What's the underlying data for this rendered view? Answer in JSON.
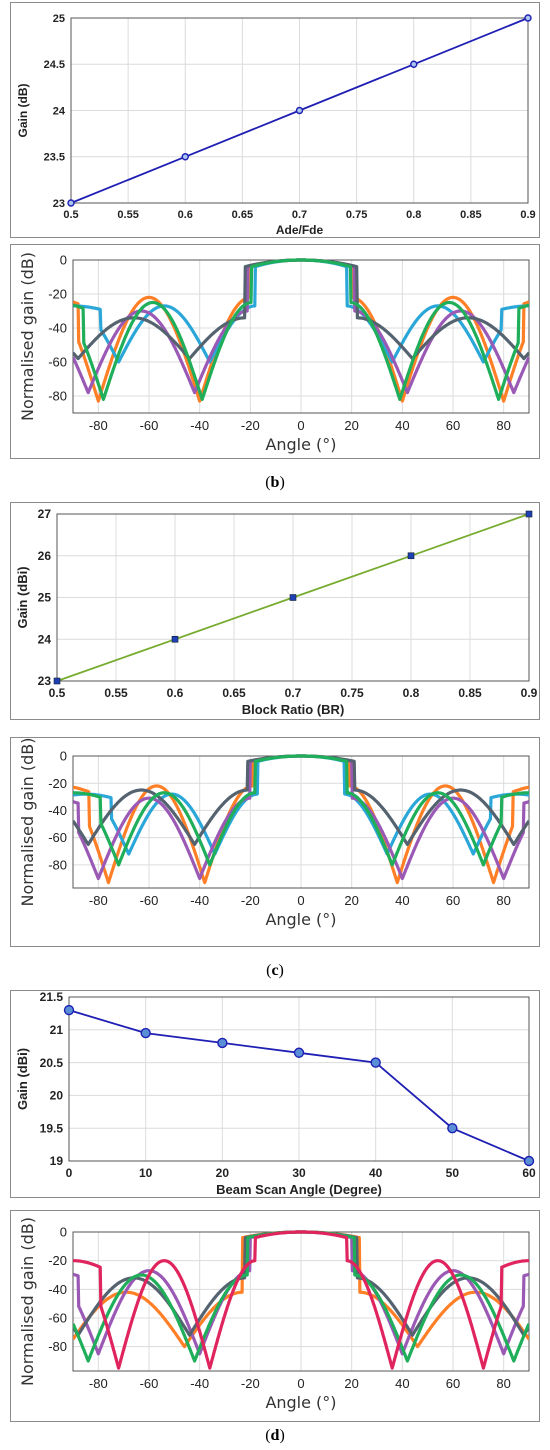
{
  "captions": {
    "b": {
      "open": "(",
      "letter": "b",
      "close": ")"
    },
    "c": {
      "open": "(",
      "letter": "c",
      "close": ")"
    },
    "d": {
      "open": "(",
      "letter": "d",
      "close": ")"
    }
  },
  "chart_data": [
    {
      "id": "gain_ade_fde",
      "type": "line",
      "xlabel": "Ade/Fde",
      "ylabel": "Gain (dB)",
      "xlim": [
        0.5,
        0.9
      ],
      "ylim": [
        23,
        25
      ],
      "xticks": [
        "0.5",
        "0.55",
        "0.6",
        "0.65",
        "0.7",
        "0.75",
        "0.8",
        "0.85",
        "0.9"
      ],
      "yticks": [
        "23",
        "23.5",
        "24",
        "24.5",
        "25"
      ],
      "grid": true,
      "series": [
        {
          "x": [
            0.5,
            0.6,
            0.7,
            0.8,
            0.9
          ],
          "y": [
            23,
            23.5,
            24,
            24.5,
            25
          ],
          "color": "#1f1fb4",
          "marker": "circle"
        }
      ]
    },
    {
      "id": "pattern_b",
      "type": "line",
      "xlabel": "Angle (°)",
      "ylabel": "Normalised gain (dB)",
      "xlim": [
        -90,
        90
      ],
      "ylim": [
        -90,
        0
      ],
      "xticks": [
        "-80",
        "-60",
        "-40",
        "-20",
        "0",
        "20",
        "40",
        "60",
        "80"
      ],
      "yticks": [
        "0",
        "-20",
        "-40",
        "-60",
        "-80"
      ],
      "grid": true,
      "series": [
        {
          "beamwidth": 40,
          "floor": -22,
          "depth": -83,
          "color": "#ff7f27"
        },
        {
          "beamwidth": 36,
          "floor": -27,
          "depth": -60,
          "color": "#2aa7d8"
        },
        {
          "beamwidth": 42,
          "floor": -30,
          "depth": -78,
          "color": "#9b59b6"
        },
        {
          "beamwidth": 44,
          "floor": -34,
          "depth": -58,
          "color": "#54636f"
        },
        {
          "beamwidth": 39,
          "floor": -25,
          "depth": -82,
          "color": "#1fae5a"
        }
      ]
    },
    {
      "id": "gain_block_ratio",
      "type": "line",
      "xlabel": "Block Ratio (BR)",
      "ylabel": "Gain (dBi)",
      "xlim": [
        0.5,
        0.9
      ],
      "ylim": [
        23,
        27
      ],
      "xticks": [
        "0.5",
        "0.55",
        "0.6",
        "0.65",
        "0.7",
        "0.75",
        "0.8",
        "0.85",
        "0.9"
      ],
      "yticks": [
        "23",
        "24",
        "25",
        "26",
        "27"
      ],
      "grid": true,
      "series": [
        {
          "x": [
            0.5,
            0.6,
            0.7,
            0.8,
            0.9
          ],
          "y": [
            23,
            24,
            25,
            26,
            27
          ],
          "color": "#77ac30",
          "marker": "square",
          "marker_color": "#1f3fb4"
        }
      ]
    },
    {
      "id": "pattern_c",
      "type": "line",
      "xlabel": "Angle (°)",
      "ylabel": "Normalised gain (dB)",
      "xlim": [
        -90,
        90
      ],
      "ylim": [
        -97,
        0
      ],
      "xticks": [
        "-80",
        "-60",
        "-40",
        "-20",
        "0",
        "20",
        "40",
        "60",
        "80"
      ],
      "yticks": [
        "0",
        "-20",
        "-40",
        "-60",
        "-80"
      ],
      "grid": true,
      "series": [
        {
          "beamwidth": 38,
          "floor": -22,
          "depth": -93,
          "color": "#ff7f27"
        },
        {
          "beamwidth": 34,
          "floor": -28,
          "depth": -72,
          "color": "#2aa7d8"
        },
        {
          "beamwidth": 40,
          "floor": -31,
          "depth": -90,
          "color": "#9b59b6"
        },
        {
          "beamwidth": 42,
          "floor": -25,
          "depth": -65,
          "color": "#54636f"
        },
        {
          "beamwidth": 36,
          "floor": -27,
          "depth": -80,
          "color": "#1fae5a"
        }
      ]
    },
    {
      "id": "gain_beam_scan",
      "type": "line",
      "xlabel": "Beam Scan Angle (Degree)",
      "ylabel": "Gain (dBi)",
      "xlim": [
        0,
        60
      ],
      "ylim": [
        19,
        21.5
      ],
      "xticks": [
        "0",
        "10",
        "20",
        "30",
        "40",
        "50",
        "60"
      ],
      "yticks": [
        "19",
        "19.5",
        "20",
        "20.5",
        "21",
        "21.5"
      ],
      "grid": true,
      "series": [
        {
          "x": [
            0,
            10,
            20,
            30,
            40,
            50,
            60
          ],
          "y": [
            21.3,
            20.95,
            20.8,
            20.65,
            20.5,
            19.5,
            19
          ],
          "color": "#1f1fb4",
          "marker": "circle"
        }
      ]
    },
    {
      "id": "pattern_d",
      "type": "line",
      "xlabel": "Angle (°)",
      "ylabel": "Normalised gain (dB)",
      "xlim": [
        -90,
        90
      ],
      "ylim": [
        -97,
        0
      ],
      "xticks": [
        "-80",
        "-60",
        "-40",
        "-20",
        "0",
        "20",
        "40",
        "60",
        "80"
      ],
      "yticks": [
        "0",
        "-20",
        "-40",
        "-60",
        "-80"
      ],
      "grid": true,
      "series": [
        {
          "beamwidth": 46,
          "floor": -42,
          "depth": -80,
          "color": "#ff7f27"
        },
        {
          "beamwidth": 40,
          "floor": -27,
          "depth": -85,
          "color": "#9b59b6"
        },
        {
          "beamwidth": 44,
          "floor": -32,
          "depth": -72,
          "color": "#54636f"
        },
        {
          "beamwidth": 42,
          "floor": -30,
          "depth": -90,
          "color": "#1fae5a"
        },
        {
          "beamwidth": 36,
          "floor": -20,
          "depth": -95,
          "color": "#e0245e"
        }
      ]
    }
  ]
}
